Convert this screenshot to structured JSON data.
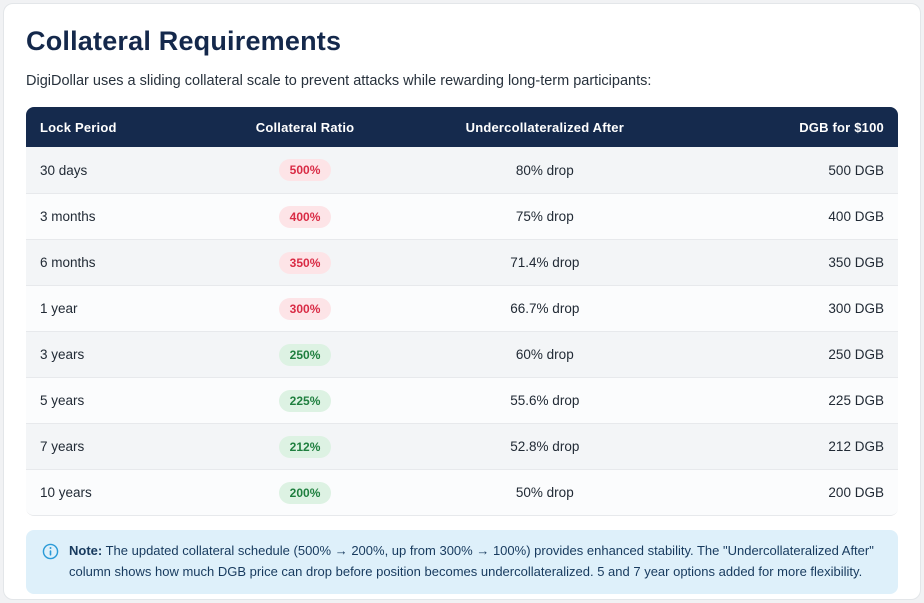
{
  "page": {
    "title": "Collateral Requirements",
    "subtitle": "DigiDollar uses a sliding collateral scale to prevent attacks while rewarding long-term participants:"
  },
  "table": {
    "columns": [
      "Lock Period",
      "Collateral Ratio",
      "Undercollateralized After",
      "DGB for $100"
    ],
    "rows": [
      {
        "lock_period": "30 days",
        "collateral_ratio": "500%",
        "ratio_level": "high",
        "undercollateralized_after": "80% drop",
        "dgb_for_100": "500 DGB"
      },
      {
        "lock_period": "3 months",
        "collateral_ratio": "400%",
        "ratio_level": "high",
        "undercollateralized_after": "75% drop",
        "dgb_for_100": "400 DGB"
      },
      {
        "lock_period": "6 months",
        "collateral_ratio": "350%",
        "ratio_level": "high",
        "undercollateralized_after": "71.4% drop",
        "dgb_for_100": "350 DGB"
      },
      {
        "lock_period": "1 year",
        "collateral_ratio": "300%",
        "ratio_level": "high",
        "undercollateralized_after": "66.7% drop",
        "dgb_for_100": "300 DGB"
      },
      {
        "lock_period": "3 years",
        "collateral_ratio": "250%",
        "ratio_level": "low",
        "undercollateralized_after": "60% drop",
        "dgb_for_100": "250 DGB"
      },
      {
        "lock_period": "5 years",
        "collateral_ratio": "225%",
        "ratio_level": "low",
        "undercollateralized_after": "55.6% drop",
        "dgb_for_100": "225 DGB"
      },
      {
        "lock_period": "7 years",
        "collateral_ratio": "212%",
        "ratio_level": "low",
        "undercollateralized_after": "52.8% drop",
        "dgb_for_100": "212 DGB"
      },
      {
        "lock_period": "10 years",
        "collateral_ratio": "200%",
        "ratio_level": "low",
        "undercollateralized_after": "50% drop",
        "dgb_for_100": "200 DGB"
      }
    ]
  },
  "note": {
    "label": "Note:",
    "text": "The updated collateral schedule (500% → 200%, up from 300% → 100%) provides enhanced stability. The \"Undercollateralized After\" column shows how much DGB price can drop before position becomes undercollateralized. 5 and 7 year options added for more flexibility.",
    "icon": "info-icon"
  },
  "colors": {
    "header_bg": "#152a4d",
    "title": "#14284b",
    "badge_red_bg": "#fde4e7",
    "badge_red_text": "#d92b45",
    "badge_green_bg": "#ddf2e3",
    "badge_green_text": "#1f7f3f",
    "note_bg": "#def0fa",
    "note_text": "#173a5e",
    "info_icon": "#2b9bd7"
  }
}
